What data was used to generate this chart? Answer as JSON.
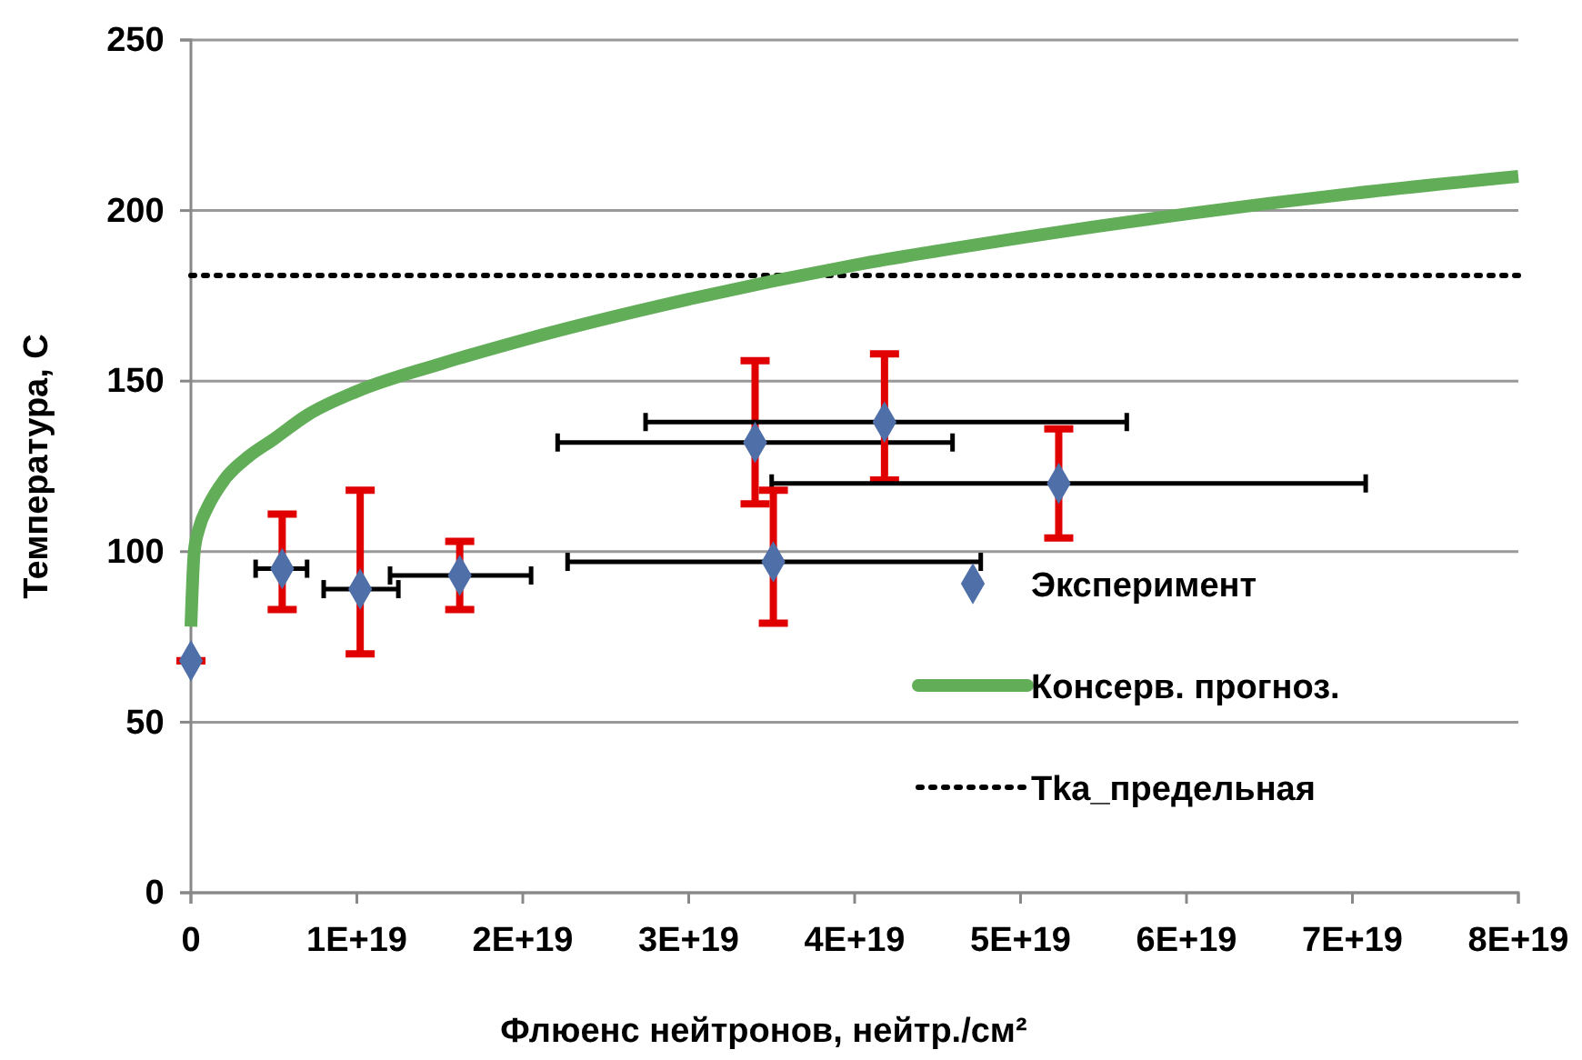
{
  "chart_data": {
    "type": "scatter",
    "xlabel": "Флюенс нейтронов, нейтр./см²",
    "ylabel": "Температура, С",
    "xlim": [
      0,
      8e+19
    ],
    "xticks": [
      0,
      {
        "value": 1e+19,
        "label": "1E+19"
      },
      {
        "value": 2e+19,
        "label": "2E+19"
      },
      {
        "value": 3e+19,
        "label": "3E+19"
      },
      {
        "value": 4e+19,
        "label": "4E+19"
      },
      {
        "value": 5e+19,
        "label": "5E+19"
      },
      {
        "value": 6e+19,
        "label": "6E+19"
      },
      {
        "value": 7e+19,
        "label": "7E+19"
      },
      {
        "value": 8e+19,
        "label": "8E+19"
      }
    ],
    "ylim": [
      0,
      250
    ],
    "yticks": [
      0,
      50,
      100,
      150,
      200,
      250
    ],
    "grid": "y",
    "legend": "right",
    "series": [
      {
        "name": "Эксперимент",
        "marker": "diamond",
        "color": "#4f6fa8",
        "x": [
          0,
          5.5e+18,
          1.02e+19,
          1.62e+19,
          3.4e+19,
          4.18e+19,
          5.23e+19,
          3.51e+19
        ],
        "values": [
          68,
          95,
          89,
          93,
          132,
          138,
          120,
          97
        ],
        "errors": [
          0,
          [
            83,
            111
          ],
          [
            70,
            118
          ],
          [
            83,
            103
          ],
          [
            114,
            156
          ],
          [
            121,
            158
          ],
          [
            104,
            136
          ],
          [
            79,
            118
          ]
        ],
        "xerrors": [
          null,
          [
            3.9e+18,
            7e+18
          ],
          [
            8e+18,
            1.25e+19
          ],
          [
            1.2e+19,
            2.05e+19
          ],
          [
            2.21e+19,
            4.59e+19
          ],
          [
            2.74e+19,
            5.64e+19
          ],
          [
            3.5e+19,
            7.08e+19
          ],
          [
            2.27e+19,
            4.76e+19
          ]
        ]
      },
      {
        "name": "Консерв. прогноз.",
        "type": "line",
        "marker": "none",
        "line_style": "solid",
        "color": "#62ad58",
        "x": [
          0,
          2e+17,
          5e+17,
          1e+18,
          2e+18,
          3.5e+18,
          5e+18,
          7e+18,
          1e+19,
          1.5e+19,
          2e+19,
          3e+19,
          4e+19,
          5e+19,
          6e+19,
          7e+19,
          8e+19
        ],
        "values": [
          78,
          100,
          107,
          113,
          121,
          128,
          133,
          140,
          147,
          155,
          162,
          174,
          184,
          192,
          199,
          205,
          210
        ]
      }
    ],
    "ref_lines": [
      {
        "axis": "y",
        "value": 181,
        "label": "Tka_предельная",
        "color": "#000000",
        "line_style": "dotted"
      }
    ]
  }
}
